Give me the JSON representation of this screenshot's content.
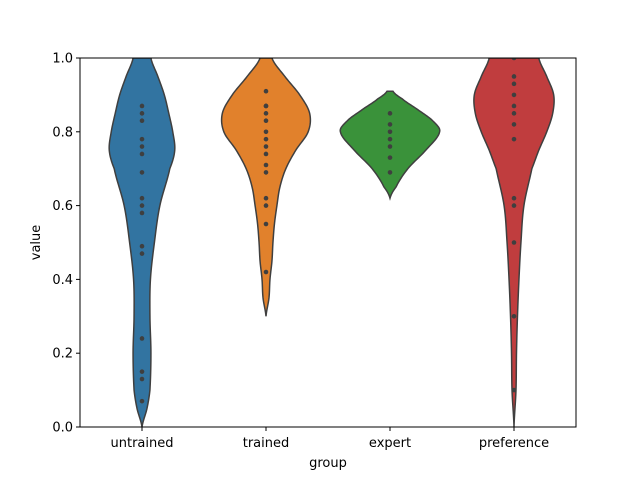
{
  "chart_data": {
    "type": "violin",
    "xlabel": "group",
    "ylabel": "value",
    "ylim": [
      0.0,
      1.0
    ],
    "yticks": [
      "0.0",
      "0.2",
      "0.4",
      "0.6",
      "0.8",
      "1.0"
    ],
    "inner": "points",
    "groups": [
      {
        "category": "untrained",
        "color": "#3274a1",
        "range": [
          0.0,
          1.0
        ],
        "points": [
          0.07,
          0.13,
          0.15,
          0.24,
          0.47,
          0.49,
          0.58,
          0.6,
          0.62,
          0.69,
          0.74,
          0.76,
          0.78,
          0.83,
          0.85,
          0.87
        ],
        "density": [
          [
            0.0,
            0.0
          ],
          [
            0.05,
            0.1
          ],
          [
            0.1,
            0.16
          ],
          [
            0.2,
            0.18
          ],
          [
            0.3,
            0.16
          ],
          [
            0.4,
            0.17
          ],
          [
            0.5,
            0.25
          ],
          [
            0.6,
            0.36
          ],
          [
            0.7,
            0.56
          ],
          [
            0.75,
            0.66
          ],
          [
            0.8,
            0.62
          ],
          [
            0.85,
            0.54
          ],
          [
            0.9,
            0.45
          ],
          [
            0.95,
            0.32
          ],
          [
            1.0,
            0.18
          ]
        ]
      },
      {
        "category": "trained",
        "color": "#e1812c",
        "range": [
          0.3,
          1.0
        ],
        "points": [
          0.42,
          0.55,
          0.6,
          0.62,
          0.69,
          0.71,
          0.74,
          0.76,
          0.78,
          0.8,
          0.83,
          0.85,
          0.87,
          0.87,
          0.91
        ],
        "density": [
          [
            0.3,
            0.0
          ],
          [
            0.35,
            0.06
          ],
          [
            0.4,
            0.08
          ],
          [
            0.45,
            0.12
          ],
          [
            0.5,
            0.14
          ],
          [
            0.55,
            0.17
          ],
          [
            0.6,
            0.22
          ],
          [
            0.65,
            0.28
          ],
          [
            0.7,
            0.4
          ],
          [
            0.75,
            0.6
          ],
          [
            0.8,
            0.85
          ],
          [
            0.85,
            0.88
          ],
          [
            0.9,
            0.68
          ],
          [
            0.95,
            0.38
          ],
          [
            1.0,
            0.12
          ]
        ]
      },
      {
        "category": "expert",
        "color": "#3a923a",
        "range": [
          0.62,
          0.91
        ],
        "points": [
          0.69,
          0.73,
          0.76,
          0.78,
          0.8,
          0.82,
          0.85
        ],
        "density": [
          [
            0.62,
            0.0
          ],
          [
            0.65,
            0.12
          ],
          [
            0.7,
            0.36
          ],
          [
            0.75,
            0.72
          ],
          [
            0.8,
            1.0
          ],
          [
            0.83,
            0.86
          ],
          [
            0.86,
            0.56
          ],
          [
            0.89,
            0.24
          ],
          [
            0.91,
            0.06
          ]
        ]
      },
      {
        "category": "preference",
        "color": "#c03d3e",
        "range": [
          0.0,
          1.0
        ],
        "points": [
          0.1,
          0.3,
          0.5,
          0.6,
          0.62,
          0.78,
          0.82,
          0.85,
          0.87,
          0.9,
          0.93,
          0.95,
          1.0
        ],
        "density": [
          [
            0.0,
            0.0
          ],
          [
            0.1,
            0.04
          ],
          [
            0.2,
            0.05
          ],
          [
            0.3,
            0.07
          ],
          [
            0.4,
            0.1
          ],
          [
            0.5,
            0.14
          ],
          [
            0.6,
            0.2
          ],
          [
            0.7,
            0.36
          ],
          [
            0.75,
            0.5
          ],
          [
            0.8,
            0.66
          ],
          [
            0.85,
            0.78
          ],
          [
            0.9,
            0.8
          ],
          [
            0.95,
            0.66
          ],
          [
            1.0,
            0.5
          ]
        ]
      }
    ]
  }
}
